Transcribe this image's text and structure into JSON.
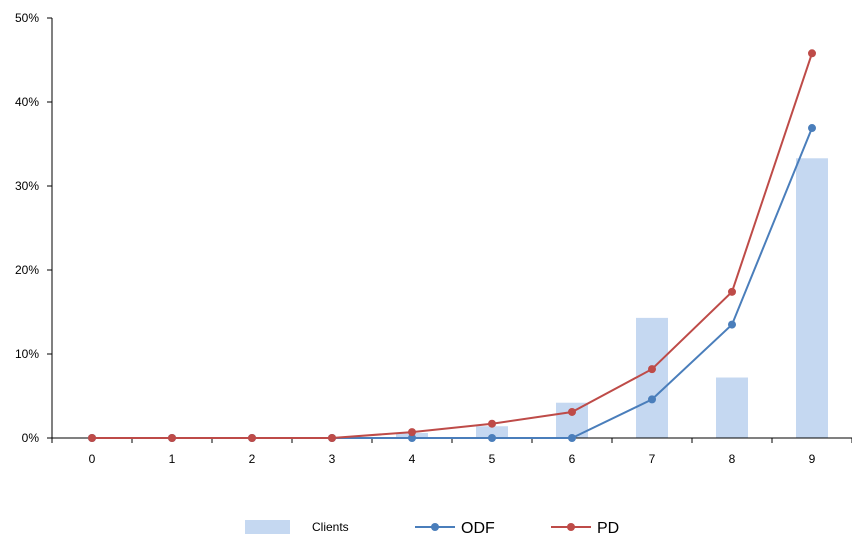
{
  "chart_data": {
    "type": "bar",
    "categories": [
      "0",
      "1",
      "2",
      "3",
      "4",
      "5",
      "6",
      "7",
      "8",
      "9"
    ],
    "ylim": [
      0,
      50
    ],
    "y_ticks": [
      0,
      10,
      20,
      30,
      40,
      50
    ],
    "y_tick_labels": [
      "0%",
      "10%",
      "20%",
      "30%",
      "40%",
      "50%"
    ],
    "grid": false,
    "legend_position": "bottom",
    "series": [
      {
        "name": "Clients",
        "type": "bar",
        "color": "#c5d8f1",
        "values": [
          0,
          0,
          0,
          0.1,
          0.6,
          1.4,
          4.2,
          14.3,
          7.2,
          33.3
        ]
      },
      {
        "name": "ODF",
        "type": "line",
        "color": "#4a7ebb",
        "values": [
          0,
          0,
          0,
          0,
          0,
          0,
          0,
          4.6,
          13.5,
          36.9
        ]
      },
      {
        "name": "PD",
        "type": "line",
        "color": "#be4b48",
        "values": [
          0,
          0,
          0,
          0,
          0.7,
          1.7,
          3.1,
          8.2,
          17.4,
          45.8
        ]
      }
    ],
    "legend": [
      {
        "label": "Clients",
        "symbol": "bar",
        "color": "#c5d8f1"
      },
      {
        "label": "ODF",
        "symbol": "line",
        "color": "#4a7ebb"
      },
      {
        "label": "PD",
        "symbol": "line",
        "color": "#be4b48"
      }
    ]
  }
}
